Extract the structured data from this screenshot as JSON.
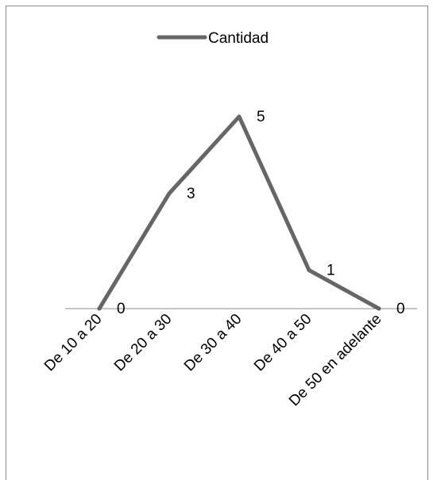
{
  "chart_data": {
    "type": "line",
    "categories": [
      "De 10 a 20",
      "De 20 a 30",
      "De 30 a 40",
      "De 40 a 50",
      "De 50 en adelante"
    ],
    "series": [
      {
        "name": "Cantidad",
        "values": [
          0,
          3,
          5,
          1,
          0
        ],
        "color": "#666666"
      }
    ],
    "data_labels": [
      "0",
      "3",
      "5",
      "1",
      "0"
    ],
    "ylim": [
      0,
      5
    ],
    "grid": false,
    "legend_position": "top"
  }
}
